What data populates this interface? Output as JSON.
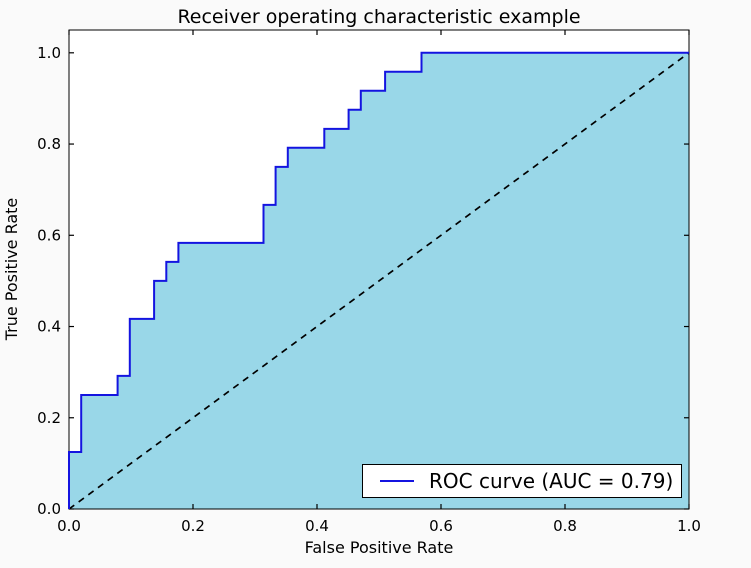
{
  "figure": {
    "background": "#fafafa",
    "plot_background": "#ffffff",
    "spine_color": "#000000"
  },
  "chart_data": {
    "type": "line",
    "title": "Receiver operating characteristic example",
    "xlabel": "False Positive Rate",
    "ylabel": "True Positive Rate",
    "xlim": [
      0.0,
      1.0
    ],
    "ylim": [
      0.0,
      1.05
    ],
    "grid": false,
    "xticks": [
      "0.0",
      "0.2",
      "0.4",
      "0.6",
      "0.8",
      "1.0"
    ],
    "yticks": [
      "0.0",
      "0.2",
      "0.4",
      "0.6",
      "0.8",
      "1.0"
    ],
    "legend": {
      "position": "lower right",
      "label": "ROC curve (AUC = 0.79)"
    },
    "series": [
      {
        "name": "ROC curve",
        "auc": 0.79,
        "style": "step",
        "color": "#1414e0",
        "fill_color": "#99d7e8",
        "points": [
          [
            0.0,
            0.0
          ],
          [
            0.0,
            0.125
          ],
          [
            0.0196,
            0.125
          ],
          [
            0.0196,
            0.25
          ],
          [
            0.0784,
            0.25
          ],
          [
            0.0784,
            0.2917
          ],
          [
            0.098,
            0.2917
          ],
          [
            0.098,
            0.4167
          ],
          [
            0.1373,
            0.4167
          ],
          [
            0.1373,
            0.5
          ],
          [
            0.1569,
            0.5
          ],
          [
            0.1569,
            0.5417
          ],
          [
            0.1765,
            0.5417
          ],
          [
            0.1765,
            0.5833
          ],
          [
            0.3137,
            0.5833
          ],
          [
            0.3137,
            0.6667
          ],
          [
            0.3333,
            0.6667
          ],
          [
            0.3333,
            0.75
          ],
          [
            0.3529,
            0.75
          ],
          [
            0.3529,
            0.7917
          ],
          [
            0.4118,
            0.7917
          ],
          [
            0.4118,
            0.8333
          ],
          [
            0.451,
            0.8333
          ],
          [
            0.451,
            0.875
          ],
          [
            0.4706,
            0.875
          ],
          [
            0.4706,
            0.9167
          ],
          [
            0.5098,
            0.9167
          ],
          [
            0.5098,
            0.9583
          ],
          [
            0.5686,
            0.9583
          ],
          [
            0.5686,
            1.0
          ],
          [
            1.0,
            1.0
          ]
        ]
      },
      {
        "name": "chance diagonal",
        "style": "dashed",
        "color": "#000000",
        "points": [
          [
            0.0,
            0.0
          ],
          [
            1.0,
            1.0
          ]
        ]
      }
    ]
  }
}
